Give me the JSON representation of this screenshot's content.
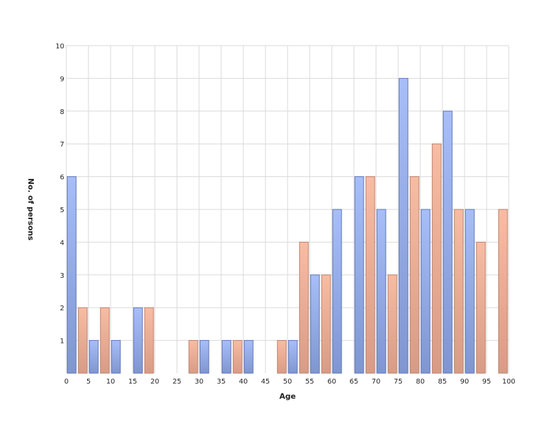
{
  "chart_data": {
    "type": "bar",
    "xlabel": "Age",
    "ylabel": "No. of persons",
    "xlim": [
      0,
      100
    ],
    "ylim": [
      0,
      10
    ],
    "x_ticks": [
      "0",
      "5",
      "10",
      "15",
      "20",
      "25",
      "30",
      "35",
      "40",
      "45",
      "50",
      "55",
      "60",
      "65",
      "70",
      "75",
      "80",
      "85",
      "90",
      "95",
      "100"
    ],
    "y_ticks": [
      "1",
      "2",
      "3",
      "4",
      "5",
      "6",
      "7",
      "8",
      "9",
      "10"
    ],
    "grid": true,
    "legend": "none",
    "series": [
      {
        "color": "#9fb6f2",
        "points": [
          {
            "x": 1.2,
            "y": 6
          },
          {
            "x": 6.2,
            "y": 1
          },
          {
            "x": 11.2,
            "y": 1
          },
          {
            "x": 16.2,
            "y": 2
          },
          {
            "x": 31.2,
            "y": 1
          },
          {
            "x": 36.2,
            "y": 1
          },
          {
            "x": 41.2,
            "y": 1
          },
          {
            "x": 51.2,
            "y": 1
          },
          {
            "x": 56.2,
            "y": 3
          },
          {
            "x": 61.2,
            "y": 5
          },
          {
            "x": 66.2,
            "y": 6
          },
          {
            "x": 71.2,
            "y": 5
          },
          {
            "x": 76.2,
            "y": 9
          },
          {
            "x": 81.2,
            "y": 5
          },
          {
            "x": 86.2,
            "y": 8
          },
          {
            "x": 91.2,
            "y": 5
          }
        ]
      },
      {
        "color": "#f2b49b",
        "points": [
          {
            "x": 3.7,
            "y": 2
          },
          {
            "x": 8.7,
            "y": 2
          },
          {
            "x": 18.7,
            "y": 2
          },
          {
            "x": 28.7,
            "y": 1
          },
          {
            "x": 38.7,
            "y": 1
          },
          {
            "x": 48.7,
            "y": 1
          },
          {
            "x": 53.7,
            "y": 4
          },
          {
            "x": 58.7,
            "y": 3
          },
          {
            "x": 68.7,
            "y": 6
          },
          {
            "x": 73.7,
            "y": 3
          },
          {
            "x": 78.7,
            "y": 6
          },
          {
            "x": 83.7,
            "y": 7
          },
          {
            "x": 88.7,
            "y": 5
          },
          {
            "x": 93.7,
            "y": 4
          },
          {
            "x": 98.7,
            "y": 5
          }
        ]
      }
    ]
  }
}
